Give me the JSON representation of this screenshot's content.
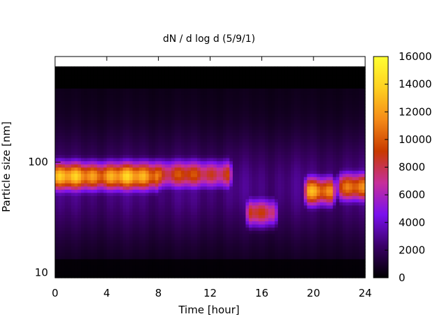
{
  "chart_data": {
    "type": "heatmap",
    "title": "dN / d log d (5/9/1)",
    "xlabel": "Time [hour]",
    "ylabel": "Particle size [nm]",
    "x_ticks": [
      "0",
      "4",
      "8",
      "12",
      "16",
      "20",
      "24"
    ],
    "x_tick_values": [
      0,
      4,
      8,
      12,
      16,
      20,
      24
    ],
    "xlim": [
      0,
      24
    ],
    "y_scale": "log",
    "y_ticks": [
      "10",
      "100"
    ],
    "y_tick_values": [
      10,
      100
    ],
    "ylim": [
      9,
      900
    ],
    "colorbar": {
      "ticks": [
        "0",
        "2000",
        "4000",
        "6000",
        "8000",
        "10000",
        "12000",
        "14000",
        "16000"
      ],
      "tick_values": [
        0,
        2000,
        4000,
        6000,
        8000,
        10000,
        12000,
        14000,
        16000
      ],
      "range": [
        0,
        16000
      ],
      "colormap": [
        "#000000",
        "#3a0066",
        "#7a10ee",
        "#c62f9a",
        "#c83a00",
        "#f48a18",
        "#ffd020",
        "#ffff33"
      ]
    },
    "modes": [
      {
        "t_start": 0,
        "t_end": 7.5,
        "peak_size_nm": 75,
        "peak_value": 13500
      },
      {
        "t_start": 7.5,
        "t_end": 13,
        "peak_size_nm": 78,
        "peak_value": 9500
      },
      {
        "t_start": 15.5,
        "t_end": 16.5,
        "peak_size_nm": 35,
        "peak_value": 9500
      },
      {
        "t_start": 20,
        "t_end": 21,
        "peak_size_nm": 55,
        "peak_value": 13000
      },
      {
        "t_start": 22.5,
        "t_end": 23.5,
        "peak_size_nm": 60,
        "peak_value": 11000
      }
    ]
  }
}
